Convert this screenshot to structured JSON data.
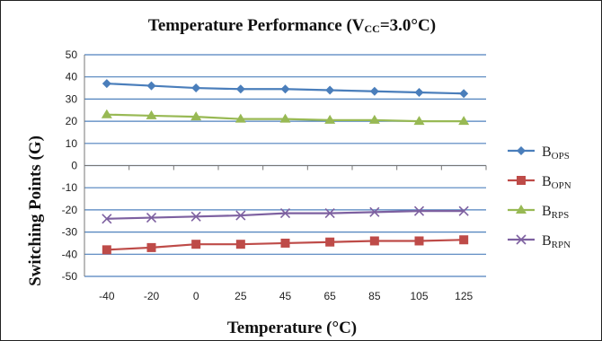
{
  "chart_data": {
    "type": "line",
    "title": "Temperature Performance (V",
    "title_sub": "CC",
    "title_tail": "=3.0°C)",
    "xlabel": "Temperature (°C)",
    "ylabel": "Switching Points (G)",
    "categories": [
      "-40",
      "-20",
      "0",
      "25",
      "45",
      "65",
      "85",
      "105",
      "125"
    ],
    "ylim": [
      -50,
      50
    ],
    "yticks": [
      -50,
      -40,
      -30,
      -20,
      -10,
      0,
      10,
      20,
      30,
      40,
      50
    ],
    "grid": "horizontal",
    "legend_position": "right",
    "series": [
      {
        "name": "B",
        "sub": "OPS",
        "color": "#4a7ebb",
        "marker": "diamond",
        "values": [
          37,
          36,
          35,
          34.5,
          34.5,
          34,
          33.5,
          33,
          32.5
        ]
      },
      {
        "name": "B",
        "sub": "OPN",
        "color": "#be4b48",
        "marker": "square",
        "values": [
          -38,
          -37,
          -35.5,
          -35.5,
          -35,
          -34.5,
          -34,
          -34,
          -33.5
        ]
      },
      {
        "name": "B",
        "sub": "RPS",
        "color": "#98b954",
        "marker": "triangle",
        "values": [
          23,
          22.5,
          22,
          21,
          21,
          20.5,
          20.5,
          20,
          20
        ]
      },
      {
        "name": "B",
        "sub": "RPN",
        "color": "#7d60a0",
        "marker": "x",
        "values": [
          -24,
          -23.5,
          -23,
          -22.5,
          -21.5,
          -21.5,
          -21,
          -20.5,
          -20.5
        ]
      }
    ]
  }
}
